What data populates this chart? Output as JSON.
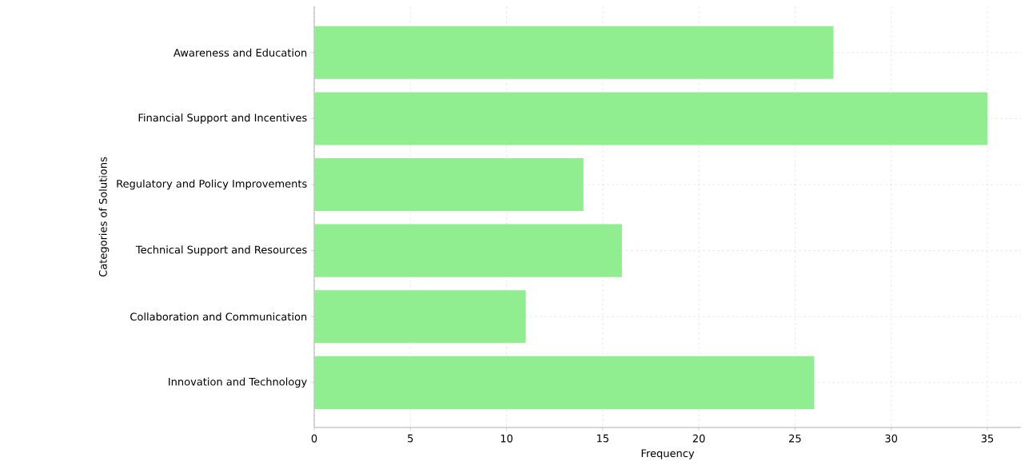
{
  "chart_data": {
    "type": "bar",
    "orientation": "horizontal",
    "xlabel": "Frequency",
    "ylabel": "Categories of Solutions",
    "categories": [
      "Awareness and Education",
      "Financial Support and Incentives",
      "Regulatory and Policy Improvements",
      "Technical Support and Resources",
      "Collaboration and Communication",
      "Innovation and Technology"
    ],
    "values": [
      27,
      35,
      14,
      16,
      11,
      26
    ],
    "color": "#90ee90",
    "xlim": [
      0,
      36.75
    ],
    "xticks": [
      0,
      5,
      10,
      15,
      20,
      25,
      30,
      35
    ],
    "grid": true
  }
}
